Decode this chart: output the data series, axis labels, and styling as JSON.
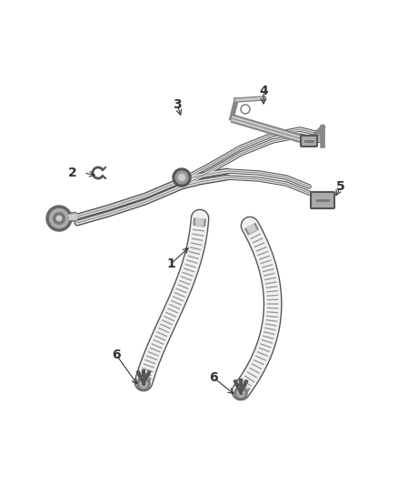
{
  "background_color": "#ffffff",
  "figsize": [
    4.38,
    5.33
  ],
  "dpi": 100,
  "line_dark": "#555555",
  "line_mid": "#888888",
  "line_light": "#cccccc",
  "hose_dark": "#777777",
  "hose_mid": "#aaaaaa",
  "hose_light": "#e8e8e8",
  "callout_color": "#333333"
}
